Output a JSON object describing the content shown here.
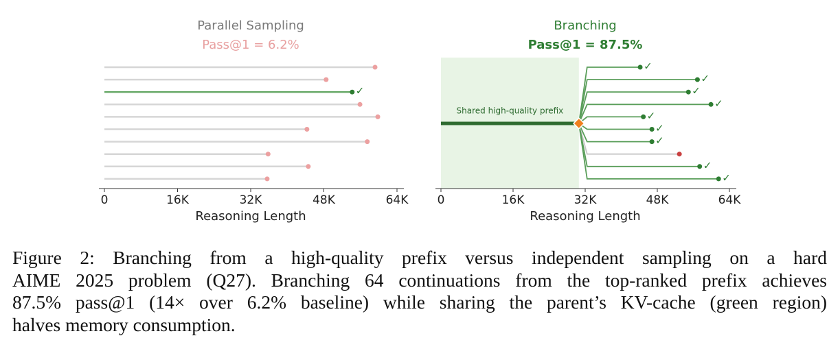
{
  "chart_data": [
    {
      "type": "lollipop",
      "title": "Parallel Sampling",
      "subtitle": "Pass@1 = 6.2%",
      "title_color": "#7a7a7a",
      "subtitle_color": "#e8a0a0",
      "values": [
        59200,
        48500,
        54200,
        55900,
        59800,
        44300,
        57500,
        35800,
        44600,
        35600
      ],
      "correct": [
        false,
        false,
        true,
        false,
        false,
        false,
        false,
        false,
        false,
        false
      ],
      "marker_label": "✓",
      "xlabel": "Reasoning Length",
      "xlim": [
        0,
        64000
      ],
      "xticks": [
        {
          "value": 0,
          "label": "0"
        },
        {
          "value": 16000,
          "label": "16K"
        },
        {
          "value": 32000,
          "label": "32K"
        },
        {
          "value": 48000,
          "label": "48K"
        },
        {
          "value": 64000,
          "label": "64K"
        }
      ]
    },
    {
      "type": "branching",
      "title": "Branching",
      "subtitle": "Pass@1 = 87.5%",
      "title_color": "#2e7d32",
      "subtitle_color": "#2e7d32",
      "prefix": 30600,
      "annotation": "Shared high-quality prefix",
      "values": [
        44200,
        56900,
        54900,
        59900,
        44900,
        46800,
        46800,
        52900,
        57400,
        61600
      ],
      "correct": [
        true,
        true,
        true,
        true,
        true,
        true,
        true,
        false,
        true,
        true
      ],
      "marker_label": "✓",
      "xlabel": "Reasoning Length",
      "xlim": [
        0,
        64000
      ],
      "xticks": [
        {
          "value": 0,
          "label": "0"
        },
        {
          "value": 16000,
          "label": "16K"
        },
        {
          "value": 32000,
          "label": "32K"
        },
        {
          "value": 48000,
          "label": "48K"
        },
        {
          "value": 64000,
          "label": "64K"
        }
      ]
    }
  ],
  "caption": {
    "lines": [
      "Figure 2: Branching from a high-quality prefix versus independent sampling on a hard",
      "AIME 2025 problem (Q27). Branching 64 continuations from the top-ranked prefix achieves",
      "87.5% pass@1 (14× over 6.2% baseline) while sharing the parent’s KV-cache (green region)",
      "halves memory consumption."
    ]
  }
}
